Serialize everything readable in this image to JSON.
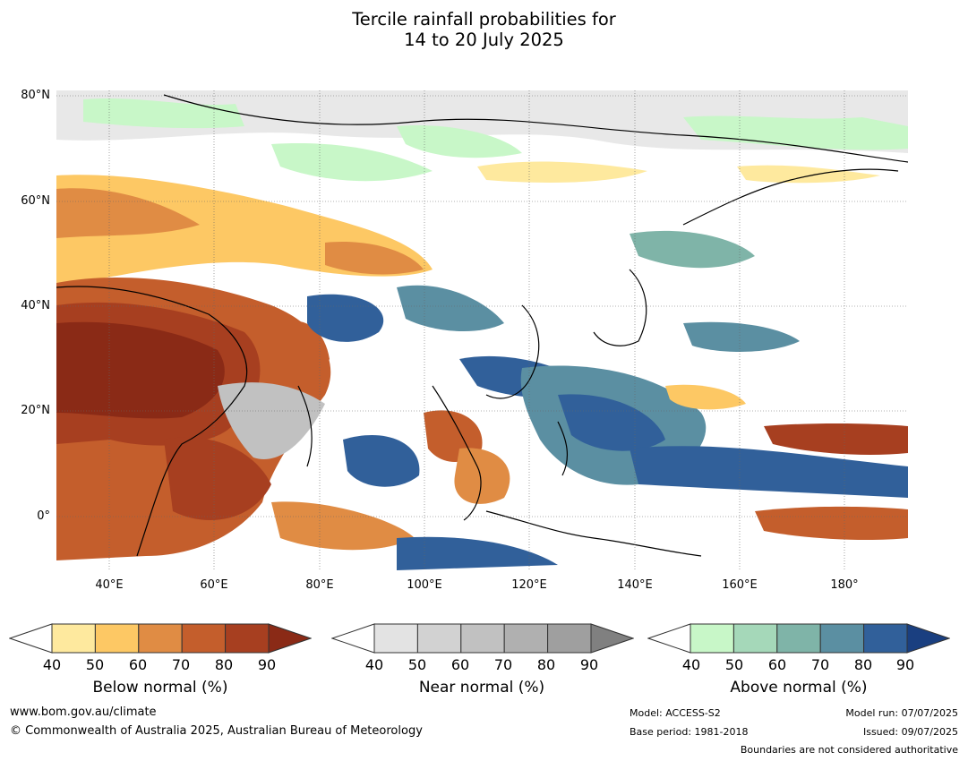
{
  "title": {
    "line1": "Tercile rainfall probabilities for",
    "line2": "14 to 20 July 2025"
  },
  "map": {
    "lat_labels": [
      "80°N",
      "60°N",
      "40°N",
      "20°N",
      "0°"
    ],
    "lon_labels": [
      "40°E",
      "60°E",
      "80°E",
      "100°E",
      "120°E",
      "140°E",
      "160°E",
      "180°"
    ],
    "extent": {
      "lon_min": 30,
      "lon_max": 192,
      "lat_min": -10,
      "lat_max": 81
    },
    "gridlines": true
  },
  "colorbars": [
    {
      "title": "Below normal (%)",
      "ticks": [
        "40",
        "50",
        "60",
        "70",
        "80",
        "90"
      ],
      "colors": [
        "#ffffff",
        "#fee99e",
        "#fdc864",
        "#e08c44",
        "#c45e2c",
        "#a73f20",
        "#8a2a16"
      ]
    },
    {
      "title": "Near normal (%)",
      "ticks": [
        "40",
        "50",
        "60",
        "70",
        "80",
        "90"
      ],
      "colors": [
        "#ffffff",
        "#e3e3e3",
        "#d2d2d2",
        "#c1c1c1",
        "#b0b0b0",
        "#9f9f9f",
        "#808080"
      ]
    },
    {
      "title": "Above normal (%)",
      "ticks": [
        "40",
        "50",
        "60",
        "70",
        "80",
        "90"
      ],
      "colors": [
        "#ffffff",
        "#c8f7c8",
        "#a5d8b9",
        "#7fb4a8",
        "#5b8fa2",
        "#31609a",
        "#1a3f80"
      ]
    }
  ],
  "footer": {
    "url": "www.bom.gov.au/climate",
    "copyright": "© Commonwealth of Australia 2025, Australian Bureau of Meteorology",
    "model": "Model: ACCESS-S2",
    "base_period": "Base period: 1981-2018",
    "model_run": "Model run: 07/07/2025",
    "issued": "Issued: 09/07/2025",
    "disclaimer": "Boundaries are not considered authoritative"
  }
}
